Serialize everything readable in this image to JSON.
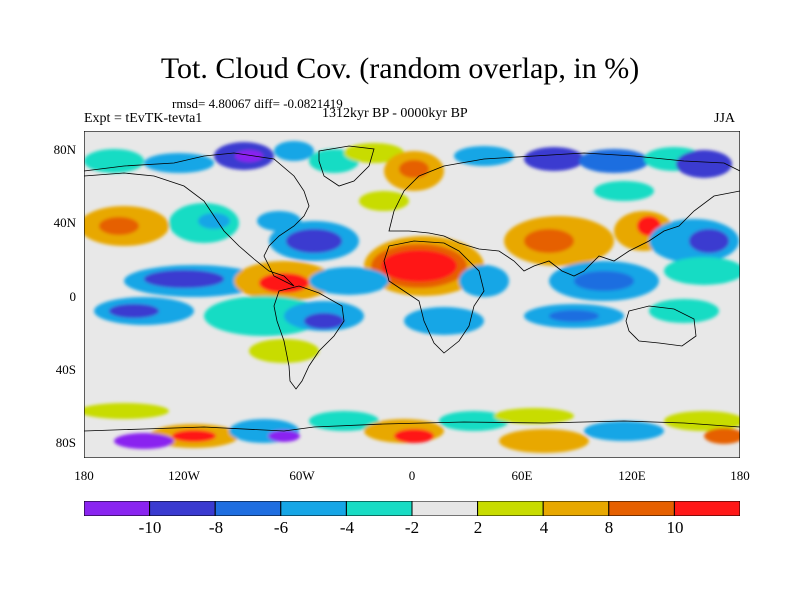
{
  "header": {
    "title": "Tot. Cloud Cov. (random overlap, in %)",
    "stats": "rmsd= 4.80067 diff= -0.0821419",
    "period": "1312kyr BP - 0000kyr BP",
    "experiment": "Expt = tEvTK-tevta1",
    "season": "JJA"
  },
  "map": {
    "projection": "cylindrical-equidistant",
    "lat_ticks": [
      "80N",
      "40N",
      "0",
      "40S",
      "80S"
    ],
    "lon_ticks": [
      "180",
      "120W",
      "60W",
      "0",
      "60E",
      "120E",
      "180"
    ],
    "background_color": "#e8e8e8",
    "coastline_color": "#000000"
  },
  "colorbar": {
    "colors": [
      "#8a24f0",
      "#3a3ad0",
      "#1f6ee0",
      "#16a6e6",
      "#18dcc4",
      "#e6e6e6",
      "#c8dc00",
      "#e8a800",
      "#e66000",
      "#ff1818"
    ],
    "labels": [
      "-10",
      "-8",
      "-6",
      "-4",
      "-2",
      "2",
      "4",
      "8",
      "10"
    ]
  }
}
